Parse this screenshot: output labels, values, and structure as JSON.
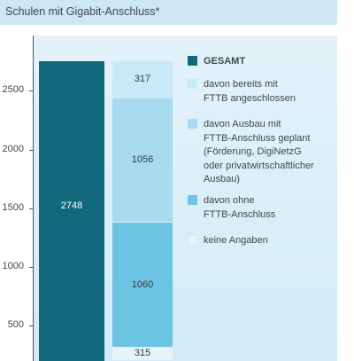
{
  "title": "Schulen mit Gigabit-Anschluss*",
  "chart_data": {
    "type": "bar",
    "ylim": [
      200,
      2850
    ],
    "yticks": [
      500,
      1000,
      1500,
      2000,
      2500
    ],
    "bars": [
      {
        "name": "GESAMT",
        "segments": [
          {
            "series": "GESAMT",
            "value": 2748,
            "label": "2748",
            "color": "#12687c"
          }
        ]
      },
      {
        "name": "stack",
        "segments": [
          {
            "series": "keine Angaben",
            "value": 315,
            "label": "315",
            "color": "#e6f4fa"
          },
          {
            "series": "davon ohne FTTB-Anschluss",
            "value": 1060,
            "label": "1060",
            "color": "#6cc4e3"
          },
          {
            "series": "davon Ausbau mit FTTB-Anschluss geplant",
            "value": 1056,
            "label": "1056",
            "color": "#a8daf0"
          },
          {
            "series": "davon bereits mit FTTB angeschlossen",
            "value": 317,
            "label": "317",
            "color": "#c8e9f7"
          }
        ]
      }
    ],
    "legend": [
      {
        "lines": [
          "GESAMT"
        ],
        "color": "#12687c",
        "bold": true
      },
      {
        "lines": [
          "davon bereits mit",
          "FTTB angeschlossen"
        ],
        "color": "#c8e9f7",
        "bold": false
      },
      {
        "lines": [
          "davon Ausbau mit",
          "FTTB-Anschluss geplant",
          "(Förderung, DigiNetzG",
          "oder privatwirtschaftlicher",
          "Ausbau)"
        ],
        "color": "#a8daf0",
        "bold": false
      },
      {
        "lines": [
          "davon ohne",
          "FTTB-Anschluss"
        ],
        "color": "#6cc4e3",
        "bold": false
      },
      {
        "lines": [
          "keine Angaben"
        ],
        "color": "#e6f4fa",
        "bold": false
      }
    ]
  }
}
